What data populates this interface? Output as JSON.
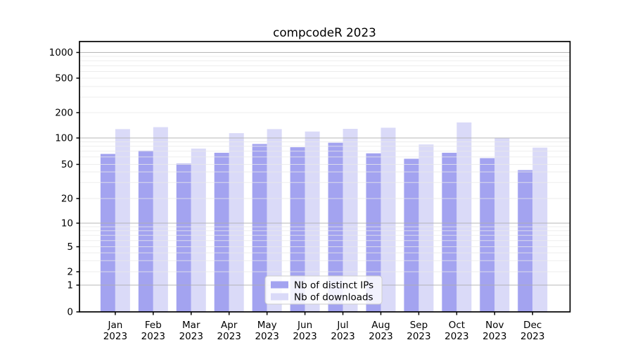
{
  "page": {
    "background": "#ffffff"
  },
  "chart_data": {
    "type": "bar",
    "title": "compcodeR 2023",
    "categories": [
      "Jan",
      "Feb",
      "Mar",
      "Apr",
      "May",
      "Jun",
      "Jul",
      "Aug",
      "Sep",
      "Oct",
      "Nov",
      "Dec"
    ],
    "year_label": "2023",
    "series": [
      {
        "name": "Nb of distinct IPs",
        "color": "#a3a3f0",
        "values": [
          65,
          71,
          50,
          67,
          85,
          78,
          88,
          66,
          57,
          67,
          58,
          42
        ]
      },
      {
        "name": "Nb of downloads",
        "color": "#dadaf8",
        "values": [
          127,
          134,
          75,
          114,
          127,
          119,
          128,
          132,
          84,
          152,
          101,
          77
        ]
      }
    ],
    "xlabel": "",
    "ylabel": "",
    "yscale": "symlog",
    "ylim": [
      0,
      1355
    ],
    "y_ticks": [
      0,
      1,
      2,
      5,
      10,
      20,
      50,
      100,
      200,
      500,
      1000
    ],
    "grid": "both",
    "legend_position": "lower center",
    "colors": {
      "major_grid": "#b0b0b0",
      "minor_grid": "#e9e9e9",
      "axis": "#000000",
      "legend_border": "#cccccc",
      "legend_background": "#ffffff"
    }
  }
}
